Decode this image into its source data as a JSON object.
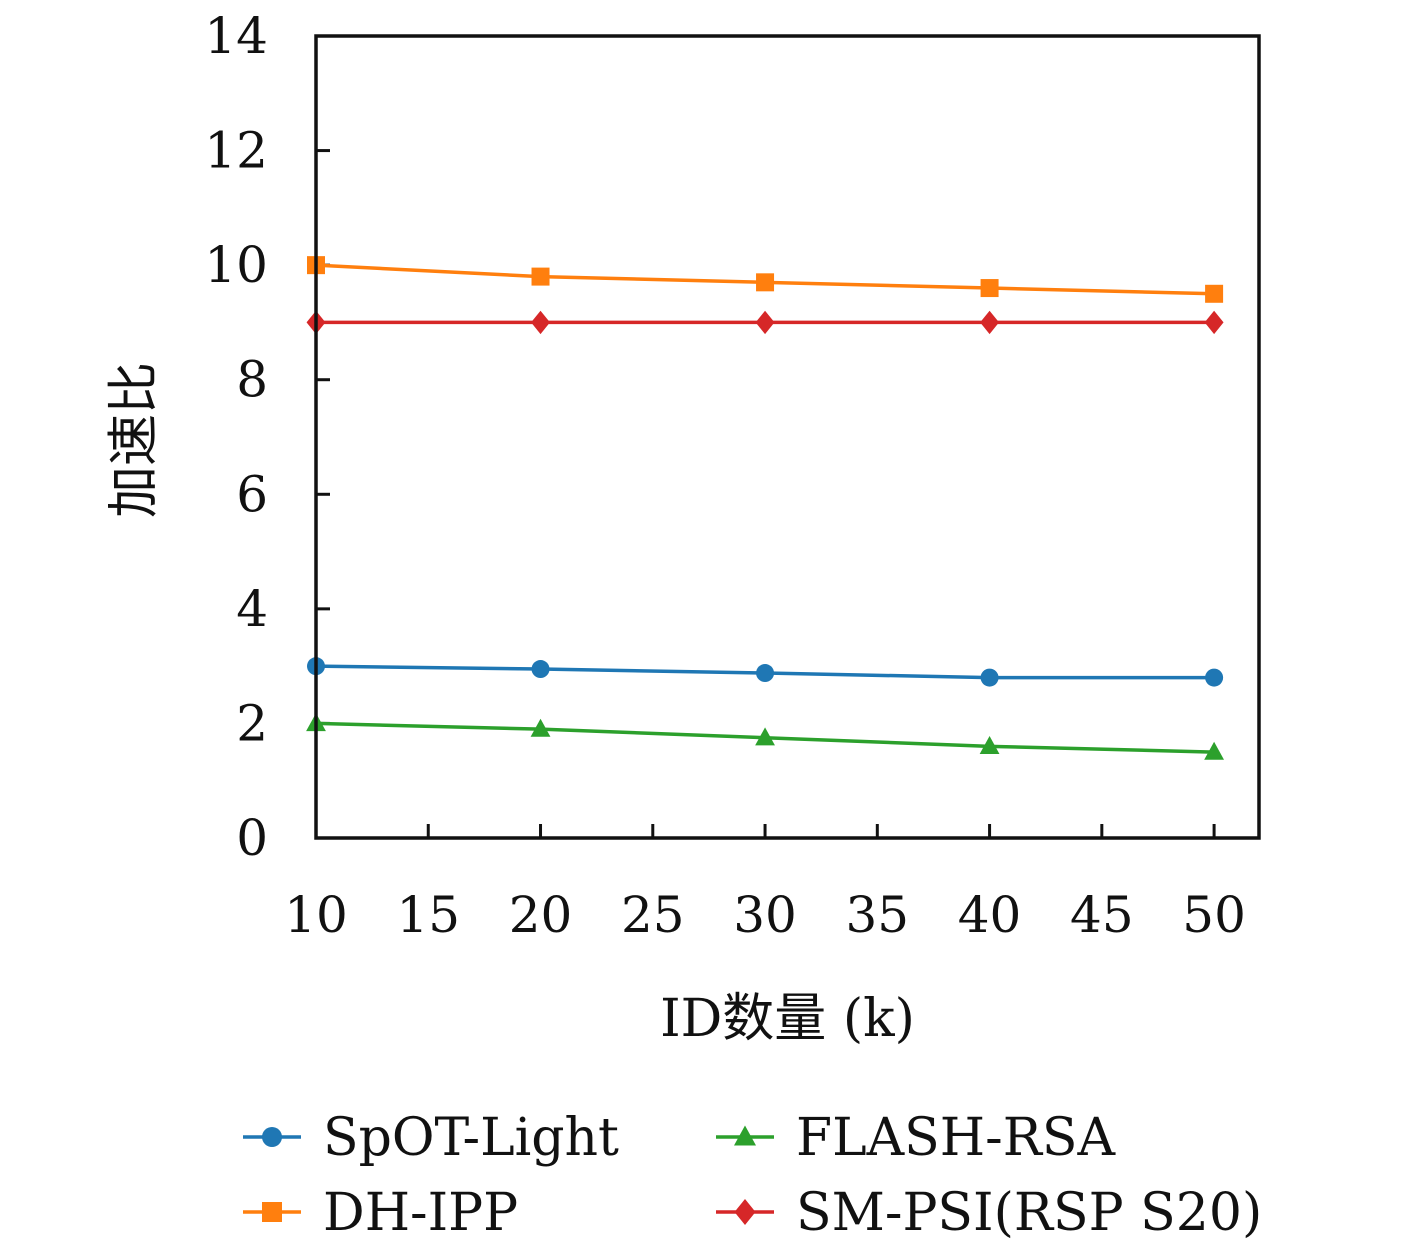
{
  "chart_data": {
    "type": "line",
    "xlabel": "ID数量 (k)",
    "ylabel": "加速比",
    "xlim": [
      10,
      52
    ],
    "ylim": [
      0,
      14
    ],
    "xticks": [
      10,
      15,
      20,
      25,
      30,
      35,
      40,
      45,
      50
    ],
    "yticks": [
      0,
      2,
      4,
      6,
      8,
      10,
      12,
      14
    ],
    "x": [
      10,
      20,
      30,
      40,
      50
    ],
    "grid": false,
    "legend_position": "bottom",
    "series": [
      {
        "name": "SpOT-Light",
        "color": "#1f77b4",
        "marker": "circle",
        "values": [
          3.0,
          2.95,
          2.88,
          2.8,
          2.8
        ]
      },
      {
        "name": "DH-IPP",
        "color": "#ff7f0e",
        "marker": "square",
        "values": [
          10.0,
          9.8,
          9.7,
          9.6,
          9.5
        ]
      },
      {
        "name": "FLASH-RSA",
        "color": "#2ca02c",
        "marker": "triangle",
        "values": [
          2.0,
          1.9,
          1.75,
          1.6,
          1.5
        ]
      },
      {
        "name": "SM-PSI(RSP S20)",
        "color": "#d62728",
        "marker": "diamond",
        "values": [
          9.0,
          9.0,
          9.0,
          9.0,
          9.0
        ]
      }
    ]
  }
}
